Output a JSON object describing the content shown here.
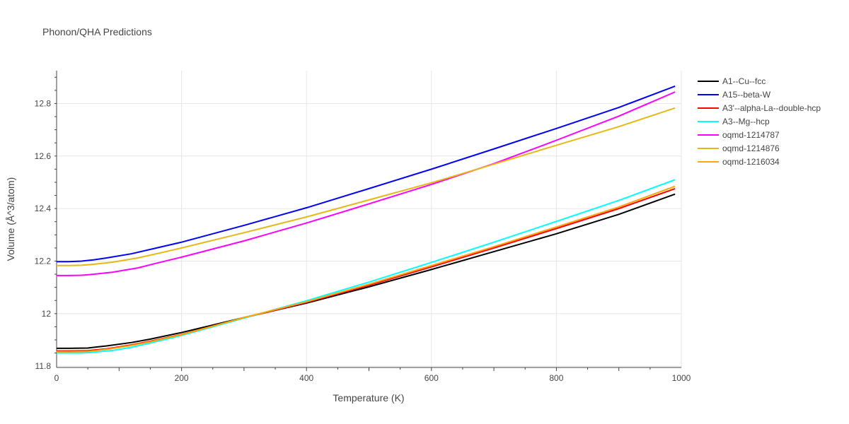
{
  "chart_data": {
    "type": "line",
    "title": "Phonon/QHA Predictions",
    "xlabel": "Temperature (K)",
    "ylabel": "Volume (Å^3/atom)",
    "xlim": [
      0,
      1000
    ],
    "ylim": [
      11.795,
      12.925
    ],
    "x_ticks": [
      0,
      200,
      400,
      600,
      800,
      1000
    ],
    "x_tick_labels": [
      "0",
      "200",
      "400",
      "600",
      "800",
      "1000"
    ],
    "y_ticks": [
      11.8,
      12.0,
      12.2,
      12.4,
      12.6,
      12.8
    ],
    "y_tick_labels": [
      "11.8",
      "12",
      "12.2",
      "12.4",
      "12.6",
      "12.8"
    ],
    "grid": true,
    "legend_position": "right",
    "series": [
      {
        "name": "A1--Cu--fcc",
        "color": "#000000",
        "x": [
          0,
          20,
          50,
          80,
          120,
          150,
          200,
          300,
          400,
          500,
          600,
          700,
          800,
          900,
          990
        ],
        "y": [
          11.868,
          11.868,
          11.869,
          11.877,
          11.89,
          11.903,
          11.928,
          11.985,
          12.04,
          12.102,
          12.168,
          12.236,
          12.304,
          12.378,
          12.455
        ]
      },
      {
        "name": "A15--beta-W",
        "color": "#0000ff",
        "x": [
          0,
          20,
          40,
          60,
          80,
          120,
          160,
          200,
          300,
          400,
          500,
          600,
          700,
          800,
          900,
          990
        ],
        "y": [
          12.198,
          12.198,
          12.2,
          12.205,
          12.212,
          12.228,
          12.25,
          12.272,
          12.336,
          12.403,
          12.476,
          12.55,
          12.627,
          12.705,
          12.785,
          12.866
        ]
      },
      {
        "name": "A3'--alpha-La--double-hcp",
        "color": "#ff0000",
        "x": [
          0,
          20,
          50,
          80,
          120,
          150,
          200,
          300,
          400,
          500,
          600,
          700,
          800,
          900,
          990
        ],
        "y": [
          11.858,
          11.858,
          11.859,
          11.866,
          11.881,
          11.895,
          11.921,
          11.984,
          12.043,
          12.108,
          12.178,
          12.25,
          12.324,
          12.4,
          12.476
        ]
      },
      {
        "name": "A3--Mg--hcp",
        "color": "#00ffff",
        "x": [
          0,
          20,
          40,
          60,
          90,
          120,
          150,
          200,
          300,
          400,
          500,
          600,
          700,
          800,
          900,
          990
        ],
        "y": [
          11.85,
          11.85,
          11.85,
          11.853,
          11.86,
          11.872,
          11.888,
          11.917,
          11.983,
          12.049,
          12.12,
          12.195,
          12.272,
          12.351,
          12.431,
          12.51
        ]
      },
      {
        "name": "oqmd-1214787",
        "color": "#ff00ff",
        "x": [
          0,
          20,
          40,
          60,
          90,
          130,
          160,
          200,
          300,
          400,
          500,
          600,
          700,
          800,
          900,
          990
        ],
        "y": [
          12.145,
          12.145,
          12.146,
          12.15,
          12.158,
          12.174,
          12.192,
          12.215,
          12.277,
          12.345,
          12.418,
          12.492,
          12.571,
          12.66,
          12.752,
          12.844
        ]
      },
      {
        "name": "oqmd-1214876",
        "color": "#e6b816",
        "x": [
          0,
          20,
          40,
          60,
          90,
          130,
          160,
          200,
          300,
          400,
          500,
          600,
          700,
          800,
          900,
          990
        ],
        "y": [
          12.183,
          12.183,
          12.184,
          12.188,
          12.196,
          12.212,
          12.228,
          12.25,
          12.308,
          12.368,
          12.433,
          12.498,
          12.569,
          12.641,
          12.712,
          12.783
        ]
      },
      {
        "name": "oqmd-1216034",
        "color": "#ffa500",
        "x": [
          0,
          20,
          50,
          80,
          120,
          150,
          200,
          300,
          400,
          500,
          600,
          700,
          800,
          900,
          990
        ],
        "y": [
          11.855,
          11.855,
          11.856,
          11.864,
          11.879,
          11.893,
          11.92,
          11.985,
          12.045,
          12.112,
          12.183,
          12.255,
          12.33,
          12.406,
          12.485
        ]
      }
    ]
  }
}
